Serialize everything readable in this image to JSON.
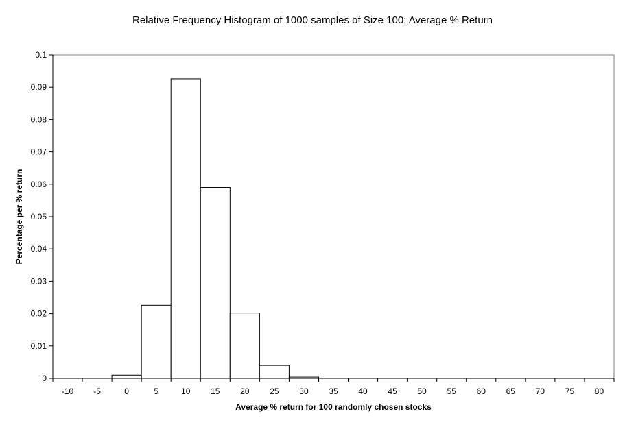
{
  "chart_data": {
    "type": "bar",
    "title": "Relative Frequency Histogram of 1000 samples of Size 100: Average % Return",
    "xlabel": "Average % return for 100 randomly chosen stocks",
    "ylabel": "Percentage per % return",
    "categories": [
      "-10",
      "-5",
      "0",
      "5",
      "10",
      "15",
      "20",
      "25",
      "30",
      "35",
      "40",
      "45",
      "50",
      "55",
      "60",
      "65",
      "70",
      "75",
      "80"
    ],
    "values": [
      0,
      0,
      0.001,
      0.0226,
      0.0926,
      0.059,
      0.0202,
      0.004,
      0.0004,
      0,
      0,
      0,
      0,
      0,
      0,
      0,
      0,
      0,
      0
    ],
    "ylim": [
      0,
      0.1
    ],
    "yticks": [
      "0",
      "0.01",
      "0.02",
      "0.03",
      "0.04",
      "0.05",
      "0.06",
      "0.07",
      "0.08",
      "0.09",
      "0.1"
    ],
    "grid": false,
    "legend": "none",
    "colors": {
      "bar_fill": "#ffffff",
      "bar_stroke": "#000000",
      "axis": "#000000"
    }
  }
}
